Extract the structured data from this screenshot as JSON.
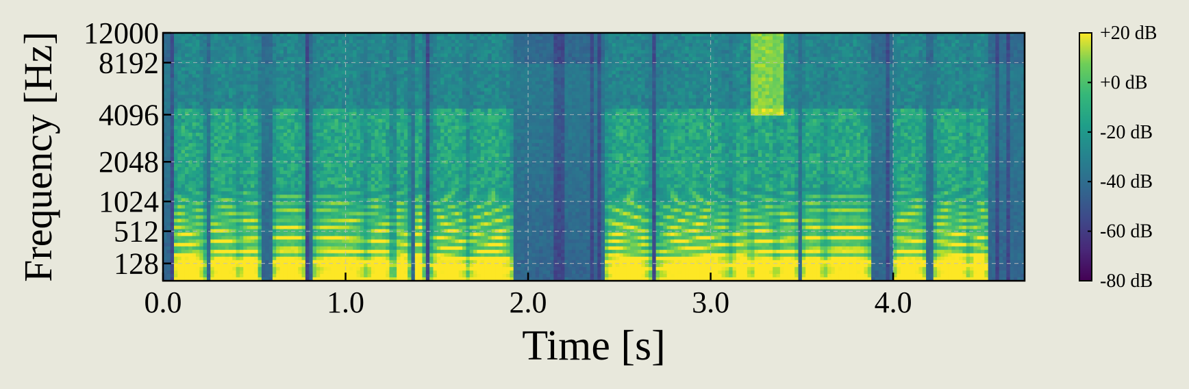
{
  "chart_data": {
    "type": "heatmap",
    "title": "",
    "xlabel": "Time [s]",
    "ylabel": "Frequency [Hz]",
    "x_range": [
      0.0,
      4.72
    ],
    "y_range_hz": [
      0,
      12000
    ],
    "y_scale": "warped (log-like)",
    "x_ticks": [
      {
        "value": 0.0,
        "label": "0.0"
      },
      {
        "value": 1.0,
        "label": "1.0"
      },
      {
        "value": 2.0,
        "label": "2.0"
      },
      {
        "value": 3.0,
        "label": "3.0"
      },
      {
        "value": 4.0,
        "label": "4.0"
      }
    ],
    "y_ticks": [
      {
        "value": 128,
        "label": "128"
      },
      {
        "value": 512,
        "label": "512"
      },
      {
        "value": 1024,
        "label": "1024"
      },
      {
        "value": 2048,
        "label": "2048"
      },
      {
        "value": 4096,
        "label": "4096"
      },
      {
        "value": 8192,
        "label": "8192"
      },
      {
        "value": 12000,
        "label": "12000"
      }
    ],
    "grid": true,
    "colormap": "viridis",
    "colorbar": {
      "range_db": [
        -80,
        20
      ],
      "ticks": [
        {
          "value": 20,
          "label": "+20 dB"
        },
        {
          "value": 0,
          "label": "+0 dB"
        },
        {
          "value": -20,
          "label": "-20 dB"
        },
        {
          "value": -40,
          "label": "-40 dB"
        },
        {
          "value": -60,
          "label": "-60 dB"
        },
        {
          "value": -80,
          "label": "-80 dB"
        }
      ]
    },
    "speech_segments_s": [
      [
        0.05,
        0.23
      ],
      [
        0.25,
        0.42
      ],
      [
        0.42,
        0.53
      ],
      [
        0.6,
        0.78
      ],
      [
        0.82,
        1.12
      ],
      [
        1.12,
        1.25
      ],
      [
        1.27,
        1.35
      ],
      [
        1.37,
        1.43
      ],
      [
        1.47,
        1.67
      ],
      [
        1.67,
        1.92
      ],
      [
        2.42,
        2.67
      ],
      [
        2.7,
        3.12
      ],
      [
        3.12,
        3.22
      ],
      [
        3.22,
        3.36
      ],
      [
        3.36,
        3.48
      ],
      [
        3.5,
        3.62
      ],
      [
        3.62,
        3.88
      ],
      [
        4.0,
        4.18
      ],
      [
        4.22,
        4.42
      ],
      [
        4.42,
        4.52
      ]
    ],
    "colors": {
      "background": "#e8e8dc",
      "grid": "#bfbfbf"
    }
  }
}
